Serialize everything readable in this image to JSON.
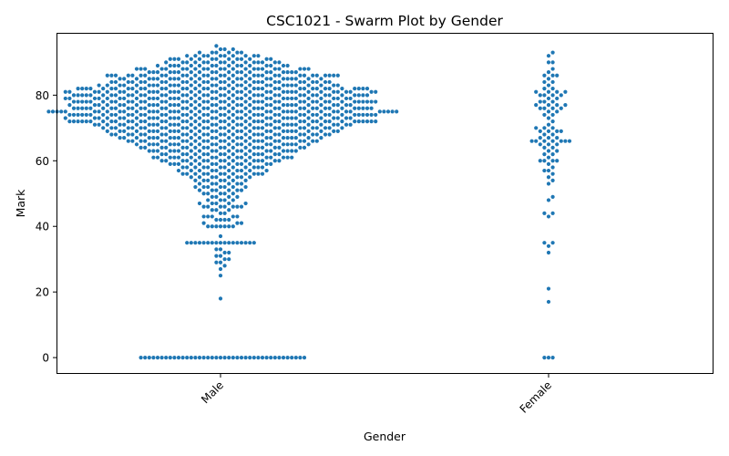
{
  "chart_data": {
    "type": "scatter",
    "kind": "swarm",
    "title": "CSC1021 - Swarm Plot by Gender",
    "xlabel": "Gender",
    "ylabel": "Mark",
    "categories": [
      "Male",
      "Female"
    ],
    "ylim": [
      -4.7,
      99
    ],
    "yticks": [
      0,
      20,
      40,
      60,
      80
    ],
    "xtick_rotation": 45,
    "point_color": "#1f77b4",
    "grid": false,
    "legend": "none",
    "series": [
      {
        "category": "Male",
        "values": [
          0,
          0,
          0,
          0,
          0,
          0,
          0,
          0,
          0,
          0,
          0,
          0,
          0,
          0,
          0,
          0,
          0,
          0,
          0,
          0,
          0,
          0,
          0,
          0,
          0,
          0,
          0,
          0,
          0,
          0,
          0,
          0,
          0,
          0,
          0,
          0,
          0,
          0,
          0,
          0,
          18,
          25,
          27,
          28,
          29,
          29,
          30,
          30,
          31,
          31,
          32,
          32,
          33,
          33,
          35,
          35,
          35,
          35,
          35,
          35,
          35,
          35,
          35,
          35,
          35,
          35,
          35,
          35,
          35,
          35,
          35,
          37,
          40,
          40,
          40,
          40,
          40,
          40,
          40,
          41,
          41,
          41,
          42,
          42,
          42,
          42,
          43,
          43,
          43,
          43,
          43,
          44,
          44,
          45,
          45,
          45,
          46,
          46,
          46,
          46,
          46,
          46,
          46,
          47,
          47,
          47,
          47,
          47,
          48,
          48,
          48,
          48,
          49,
          49,
          49,
          49,
          50,
          50,
          50,
          50,
          50,
          51,
          51,
          51,
          51,
          51,
          51,
          52,
          52,
          52,
          52,
          52,
          52,
          52,
          53,
          53,
          53,
          53,
          53,
          53,
          54,
          54,
          54,
          54,
          54,
          54,
          54,
          55,
          55,
          55,
          55,
          55,
          55,
          55,
          55,
          56,
          56,
          56,
          56,
          56,
          56,
          56,
          56,
          56,
          56,
          56,
          56,
          57,
          57,
          57,
          57,
          57,
          57,
          57,
          57,
          57,
          57,
          58,
          58,
          58,
          58,
          58,
          58,
          58,
          58,
          58,
          58,
          58,
          58,
          59,
          59,
          59,
          59,
          59,
          59,
          59,
          59,
          59,
          59,
          59,
          59,
          59,
          60,
          60,
          60,
          60,
          60,
          60,
          60,
          60,
          60,
          60,
          60,
          60,
          60,
          60,
          60,
          60,
          61,
          61,
          61,
          61,
          61,
          61,
          61,
          61,
          61,
          61,
          61,
          61,
          61,
          61,
          61,
          61,
          61,
          61,
          62,
          62,
          62,
          62,
          62,
          62,
          62,
          62,
          62,
          62,
          62,
          62,
          62,
          62,
          62,
          62,
          63,
          63,
          63,
          63,
          63,
          63,
          63,
          63,
          63,
          63,
          63,
          63,
          63,
          63,
          63,
          63,
          63,
          63,
          63,
          63,
          64,
          64,
          64,
          64,
          64,
          64,
          64,
          64,
          64,
          64,
          64,
          64,
          64,
          64,
          64,
          64,
          64,
          64,
          64,
          64,
          65,
          65,
          65,
          65,
          65,
          65,
          65,
          65,
          65,
          65,
          65,
          65,
          65,
          65,
          65,
          65,
          65,
          65,
          65,
          65,
          65,
          65,
          66,
          66,
          66,
          66,
          66,
          66,
          66,
          66,
          66,
          66,
          66,
          66,
          66,
          66,
          66,
          66,
          66,
          66,
          66,
          66,
          66,
          66,
          66,
          66,
          67,
          67,
          67,
          67,
          67,
          67,
          67,
          67,
          67,
          67,
          67,
          67,
          67,
          67,
          67,
          67,
          67,
          67,
          67,
          67,
          67,
          67,
          67,
          67,
          67,
          68,
          68,
          68,
          68,
          68,
          68,
          68,
          68,
          68,
          68,
          68,
          68,
          68,
          68,
          68,
          68,
          68,
          68,
          68,
          68,
          68,
          68,
          68,
          68,
          68,
          68,
          68,
          68,
          69,
          69,
          69,
          69,
          69,
          69,
          69,
          69,
          69,
          69,
          69,
          69,
          69,
          69,
          69,
          69,
          69,
          69,
          69,
          69,
          69,
          69,
          69,
          69,
          69,
          69,
          69,
          69,
          70,
          70,
          70,
          70,
          70,
          70,
          70,
          70,
          70,
          70,
          70,
          70,
          70,
          70,
          70,
          70,
          70,
          70,
          70,
          70,
          70,
          70,
          70,
          70,
          70,
          70,
          70,
          70,
          70,
          70,
          71,
          71,
          71,
          71,
          71,
          71,
          71,
          71,
          71,
          71,
          71,
          71,
          71,
          71,
          71,
          71,
          71,
          71,
          71,
          71,
          71,
          71,
          71,
          71,
          71,
          71,
          71,
          71,
          71,
          71,
          71,
          71,
          72,
          72,
          72,
          72,
          72,
          72,
          72,
          72,
          72,
          72,
          72,
          72,
          72,
          72,
          72,
          72,
          72,
          72,
          72,
          72,
          72,
          72,
          72,
          72,
          72,
          72,
          72,
          72,
          72,
          72,
          72,
          72,
          72,
          72,
          72,
          72,
          72,
          72,
          72,
          72,
          72,
          72,
          73,
          73,
          73,
          73,
          73,
          73,
          73,
          73,
          73,
          73,
          73,
          73,
          73,
          73,
          73,
          73,
          73,
          73,
          73,
          73,
          73,
          73,
          73,
          73,
          73,
          73,
          73,
          73,
          73,
          73,
          73,
          73,
          73,
          74,
          74,
          74,
          74,
          74,
          74,
          74,
          74,
          74,
          74,
          74,
          74,
          74,
          74,
          74,
          74,
          74,
          74,
          74,
          74,
          74,
          74,
          74,
          74,
          74,
          74,
          74,
          74,
          74,
          74,
          74,
          74,
          74,
          74,
          74,
          74,
          74,
          74,
          74,
          74,
          74,
          74,
          75,
          75,
          75,
          75,
          75,
          75,
          75,
          75,
          75,
          75,
          75,
          75,
          75,
          75,
          75,
          75,
          75,
          75,
          75,
          75,
          75,
          75,
          75,
          75,
          75,
          75,
          75,
          75,
          75,
          75,
          75,
          75,
          75,
          75,
          75,
          75,
          75,
          75,
          75,
          75,
          75,
          75,
          76,
          76,
          76,
          76,
          76,
          76,
          76,
          76,
          76,
          76,
          76,
          76,
          76,
          76,
          76,
          76,
          76,
          76,
          76,
          76,
          76,
          76,
          76,
          76,
          76,
          76,
          76,
          76,
          76,
          76,
          76,
          76,
          76,
          76,
          76,
          76,
          76,
          76,
          76,
          76,
          77,
          77,
          77,
          77,
          77,
          77,
          77,
          77,
          77,
          77,
          77,
          77,
          77,
          77,
          77,
          77,
          77,
          77,
          77,
          77,
          77,
          77,
          77,
          77,
          77,
          77,
          77,
          77,
          77,
          77,
          77,
          77,
          77,
          78,
          78,
          78,
          78,
          78,
          78,
          78,
          78,
          78,
          78,
          78,
          78,
          78,
          78,
          78,
          78,
          78,
          78,
          78,
          78,
          78,
          78,
          78,
          78,
          78,
          78,
          78,
          78,
          78,
          78,
          78,
          78,
          78,
          78,
          78,
          78,
          78,
          78,
          78,
          78,
          78,
          79,
          79,
          79,
          79,
          79,
          79,
          79,
          79,
          79,
          79,
          79,
          79,
          79,
          79,
          79,
          79,
          79,
          79,
          79,
          79,
          79,
          79,
          79,
          79,
          79,
          79,
          79,
          79,
          79,
          79,
          79,
          79,
          79,
          79,
          80,
          80,
          80,
          80,
          80,
          80,
          80,
          80,
          80,
          80,
          80,
          80,
          80,
          80,
          80,
          80,
          80,
          80,
          80,
          80,
          80,
          80,
          80,
          80,
          80,
          80,
          80,
          80,
          80,
          80,
          80,
          80,
          80,
          80,
          80,
          80,
          80,
          80,
          80,
          81,
          81,
          81,
          81,
          81,
          81,
          81,
          81,
          81,
          81,
          81,
          81,
          81,
          81,
          81,
          81,
          81,
          81,
          81,
          81,
          81,
          81,
          81,
          81,
          81,
          81,
          81,
          81,
          81,
          81,
          81,
          81,
          81,
          81,
          81,
          81,
          82,
          82,
          82,
          82,
          82,
          82,
          82,
          82,
          82,
          82,
          82,
          82,
          82,
          82,
          82,
          82,
          82,
          82,
          82,
          82,
          82,
          82,
          82,
          82,
          82,
          82,
          82,
          82,
          82,
          82,
          82,
          82,
          82,
          82,
          82,
          82,
          82,
          82,
          83,
          83,
          83,
          83,
          83,
          83,
          83,
          83,
          83,
          83,
          83,
          83,
          83,
          83,
          83,
          83,
          83,
          83,
          83,
          83,
          83,
          83,
          83,
          83,
          83,
          83,
          83,
          83,
          83,
          84,
          84,
          84,
          84,
          84,
          84,
          84,
          84,
          84,
          84,
          84,
          84,
          84,
          84,
          84,
          84,
          84,
          84,
          84,
          84,
          84,
          84,
          84,
          84,
          84,
          84,
          84,
          84,
          85,
          85,
          85,
          85,
          85,
          85,
          85,
          85,
          85,
          85,
          85,
          85,
          85,
          85,
          85,
          85,
          85,
          85,
          85,
          85,
          85,
          85,
          85,
          85,
          85,
          86,
          86,
          86,
          86,
          86,
          86,
          86,
          86,
          86,
          86,
          86,
          86,
          86,
          86,
          86,
          86,
          86,
          86,
          86,
          86,
          86,
          86,
          86,
          86,
          86,
          86,
          86,
          86,
          86,
          86,
          86,
          87,
          87,
          87,
          87,
          87,
          87,
          87,
          87,
          87,
          87,
          87,
          87,
          87,
          87,
          87,
          87,
          87,
          87,
          87,
          87,
          88,
          88,
          88,
          88,
          88,
          88,
          88,
          88,
          88,
          88,
          88,
          88,
          88,
          88,
          88,
          88,
          88,
          88,
          88,
          88,
          88,
          88,
          89,
          89,
          89,
          89,
          89,
          89,
          89,
          89,
          89,
          89,
          89,
          89,
          89,
          89,
          89,
          89,
          90,
          90,
          90,
          90,
          90,
          90,
          90,
          90,
          90,
          90,
          90,
          90,
          90,
          90,
          90,
          91,
          91,
          91,
          91,
          91,
          91,
          91,
          91,
          91,
          91,
          91,
          91,
          91,
          92,
          92,
          92,
          92,
          92,
          92,
          92,
          92,
          92,
          92,
          93,
          93,
          93,
          93,
          93,
          93,
          94,
          94,
          94,
          95
        ]
      },
      {
        "category": "Female",
        "values": [
          0,
          0,
          0,
          17,
          21,
          32,
          34,
          35,
          35,
          43,
          44,
          44,
          48,
          49,
          53,
          54,
          55,
          56,
          57,
          57,
          58,
          59,
          60,
          60,
          60,
          60,
          61,
          62,
          62,
          63,
          63,
          64,
          64,
          65,
          65,
          65,
          66,
          66,
          66,
          66,
          66,
          66,
          66,
          67,
          67,
          67,
          68,
          68,
          69,
          69,
          69,
          69,
          70,
          70,
          70,
          71,
          72,
          73,
          74,
          74,
          75,
          75,
          76,
          76,
          76,
          76,
          77,
          77,
          77,
          77,
          78,
          78,
          78,
          79,
          79,
          80,
          80,
          80,
          80,
          81,
          81,
          81,
          81,
          82,
          82,
          83,
          84,
          84,
          85,
          86,
          86,
          86,
          87,
          88,
          90,
          90,
          92,
          93
        ]
      }
    ]
  }
}
